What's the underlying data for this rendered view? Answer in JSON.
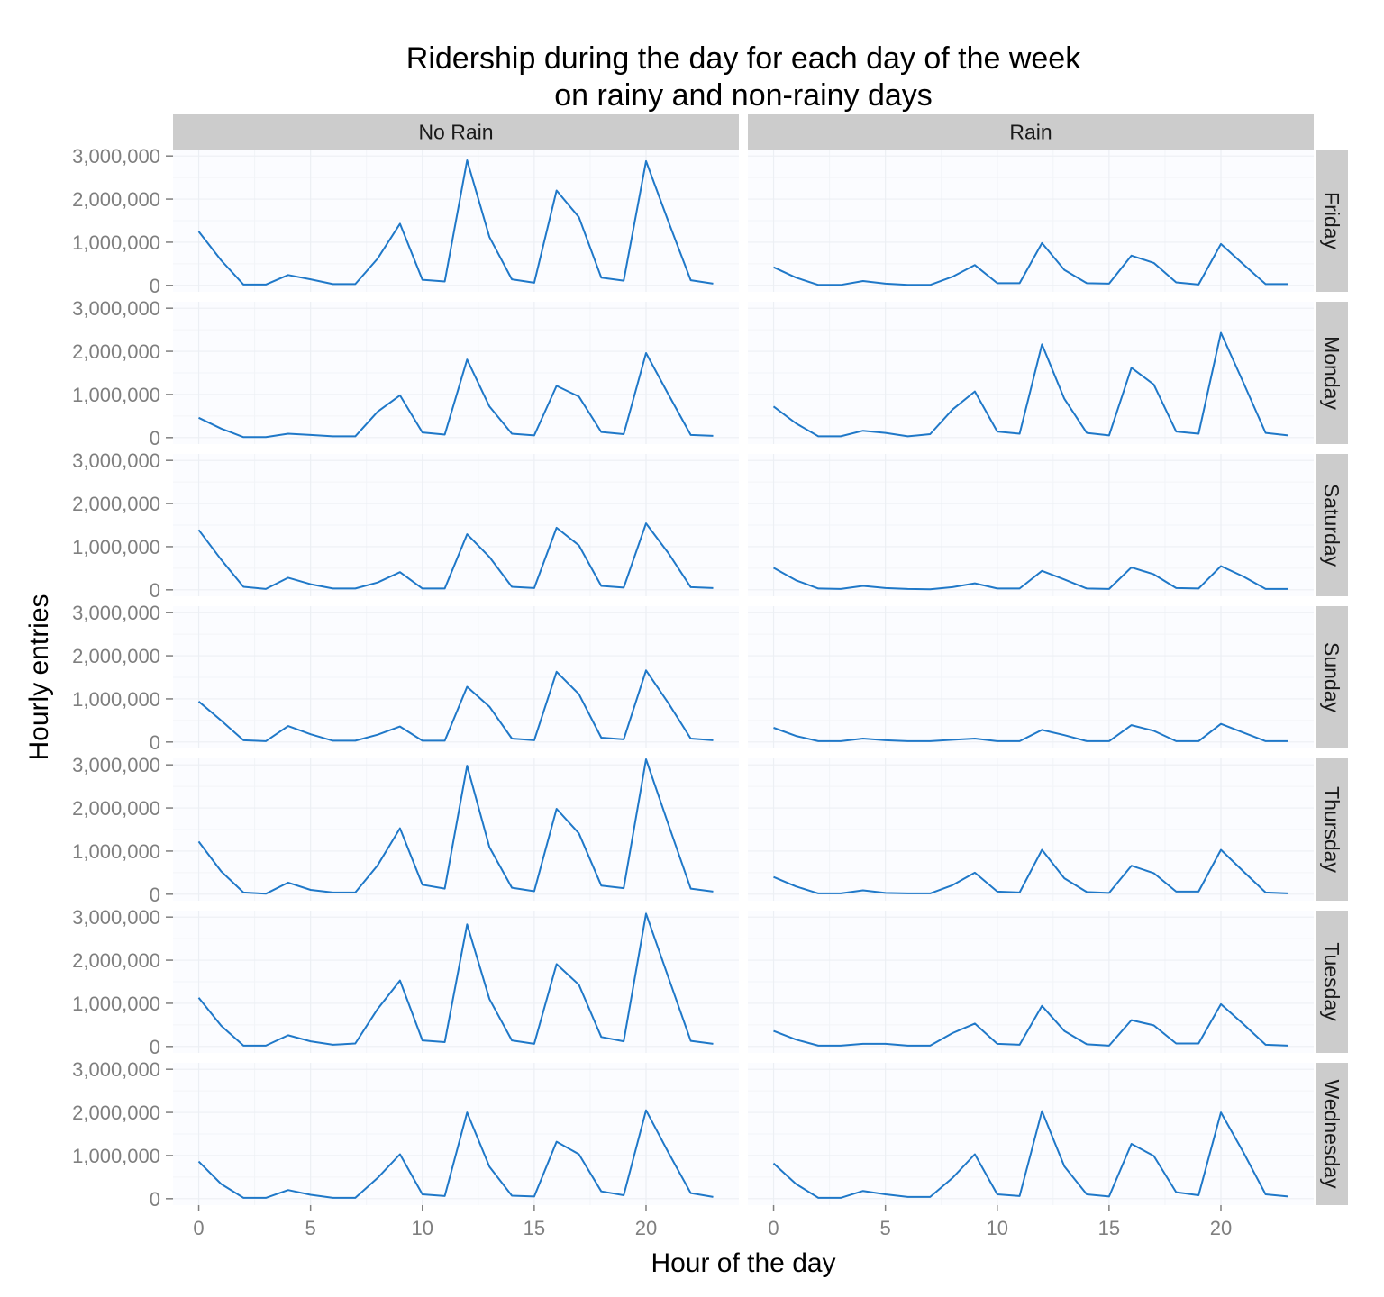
{
  "chart_data": {
    "type": "line",
    "title": "Ridership during the day for each day of the week\non rainy and non-rainy days",
    "xlabel": "Hour of the day",
    "ylabel": "Hourly entries",
    "xlim": [
      -1.15,
      24.15
    ],
    "ylim": [
      -150000,
      3150000
    ],
    "x_ticks": [
      0,
      5,
      10,
      15,
      20
    ],
    "y_ticks": [
      0,
      1000000,
      2000000,
      3000000
    ],
    "y_tick_labels": [
      "0",
      "1,000,000",
      "2,000,000",
      "3,000,000"
    ],
    "grid": true,
    "line_color": "#1f78c8",
    "columns": [
      "No Rain",
      "Rain"
    ],
    "rows": [
      "Friday",
      "Monday",
      "Saturday",
      "Sunday",
      "Thursday",
      "Tuesday",
      "Wednesday"
    ],
    "x": [
      0,
      1,
      2,
      3,
      4,
      5,
      6,
      7,
      8,
      9,
      10,
      11,
      12,
      13,
      14,
      15,
      16,
      17,
      18,
      19,
      20,
      21,
      22,
      23
    ],
    "panels": [
      {
        "row": "Friday",
        "column": "No Rain",
        "values": [
          1250000,
          580000,
          20000,
          20000,
          240000,
          140000,
          30000,
          30000,
          620000,
          1430000,
          130000,
          90000,
          2900000,
          1120000,
          140000,
          60000,
          2200000,
          1580000,
          180000,
          110000,
          2880000,
          1480000,
          120000,
          40000
        ]
      },
      {
        "row": "Friday",
        "column": "Rain",
        "values": [
          420000,
          180000,
          10000,
          10000,
          100000,
          40000,
          10000,
          10000,
          200000,
          470000,
          50000,
          50000,
          980000,
          360000,
          50000,
          40000,
          690000,
          520000,
          70000,
          20000,
          960000,
          490000,
          30000,
          30000
        ]
      },
      {
        "row": "Monday",
        "column": "No Rain",
        "values": [
          460000,
          210000,
          10000,
          10000,
          90000,
          60000,
          30000,
          30000,
          600000,
          980000,
          120000,
          70000,
          1810000,
          720000,
          90000,
          50000,
          1200000,
          950000,
          130000,
          80000,
          1960000,
          1000000,
          60000,
          40000
        ]
      },
      {
        "row": "Monday",
        "column": "Rain",
        "values": [
          720000,
          330000,
          30000,
          30000,
          160000,
          110000,
          30000,
          80000,
          650000,
          1070000,
          140000,
          90000,
          2160000,
          900000,
          110000,
          50000,
          1620000,
          1230000,
          140000,
          90000,
          2430000,
          1280000,
          110000,
          50000
        ]
      },
      {
        "row": "Saturday",
        "column": "No Rain",
        "values": [
          1390000,
          700000,
          70000,
          20000,
          280000,
          130000,
          30000,
          30000,
          170000,
          410000,
          30000,
          30000,
          1290000,
          760000,
          70000,
          40000,
          1440000,
          1030000,
          90000,
          50000,
          1540000,
          850000,
          60000,
          40000
        ]
      },
      {
        "row": "Saturday",
        "column": "Rain",
        "values": [
          510000,
          220000,
          30000,
          20000,
          90000,
          40000,
          20000,
          10000,
          60000,
          150000,
          30000,
          30000,
          440000,
          240000,
          30000,
          20000,
          520000,
          360000,
          40000,
          30000,
          550000,
          310000,
          20000,
          20000
        ]
      },
      {
        "row": "Sunday",
        "column": "No Rain",
        "values": [
          940000,
          500000,
          40000,
          20000,
          370000,
          180000,
          30000,
          30000,
          170000,
          360000,
          30000,
          30000,
          1280000,
          820000,
          80000,
          40000,
          1630000,
          1110000,
          100000,
          60000,
          1660000,
          900000,
          80000,
          40000
        ]
      },
      {
        "row": "Sunday",
        "column": "Rain",
        "values": [
          330000,
          140000,
          20000,
          20000,
          80000,
          40000,
          20000,
          20000,
          50000,
          80000,
          20000,
          20000,
          280000,
          160000,
          20000,
          20000,
          390000,
          260000,
          20000,
          20000,
          420000,
          220000,
          20000,
          20000
        ]
      },
      {
        "row": "Thursday",
        "column": "No Rain",
        "values": [
          1220000,
          530000,
          40000,
          10000,
          270000,
          100000,
          40000,
          40000,
          670000,
          1530000,
          220000,
          130000,
          2980000,
          1090000,
          150000,
          70000,
          1980000,
          1410000,
          200000,
          140000,
          3130000,
          1620000,
          130000,
          60000
        ]
      },
      {
        "row": "Thursday",
        "column": "Rain",
        "values": [
          400000,
          180000,
          20000,
          20000,
          90000,
          30000,
          20000,
          20000,
          210000,
          500000,
          60000,
          40000,
          1030000,
          370000,
          50000,
          30000,
          660000,
          490000,
          60000,
          60000,
          1030000,
          530000,
          40000,
          20000
        ]
      },
      {
        "row": "Tuesday",
        "column": "No Rain",
        "values": [
          1130000,
          480000,
          20000,
          20000,
          260000,
          120000,
          40000,
          70000,
          870000,
          1530000,
          140000,
          100000,
          2830000,
          1100000,
          140000,
          60000,
          1910000,
          1430000,
          220000,
          120000,
          3080000,
          1600000,
          130000,
          60000
        ]
      },
      {
        "row": "Tuesday",
        "column": "Rain",
        "values": [
          360000,
          160000,
          20000,
          20000,
          60000,
          60000,
          20000,
          20000,
          310000,
          530000,
          60000,
          40000,
          940000,
          360000,
          50000,
          20000,
          610000,
          490000,
          70000,
          70000,
          980000,
          520000,
          40000,
          20000
        ]
      },
      {
        "row": "Wednesday",
        "column": "No Rain",
        "values": [
          860000,
          340000,
          20000,
          20000,
          200000,
          90000,
          20000,
          20000,
          480000,
          1030000,
          100000,
          60000,
          2000000,
          740000,
          70000,
          50000,
          1320000,
          1030000,
          170000,
          80000,
          2050000,
          1070000,
          130000,
          40000
        ]
      },
      {
        "row": "Wednesday",
        "column": "Rain",
        "values": [
          820000,
          340000,
          20000,
          20000,
          180000,
          100000,
          40000,
          40000,
          480000,
          1030000,
          100000,
          60000,
          2030000,
          750000,
          100000,
          50000,
          1270000,
          990000,
          150000,
          80000,
          2000000,
          1080000,
          100000,
          50000
        ]
      }
    ]
  }
}
